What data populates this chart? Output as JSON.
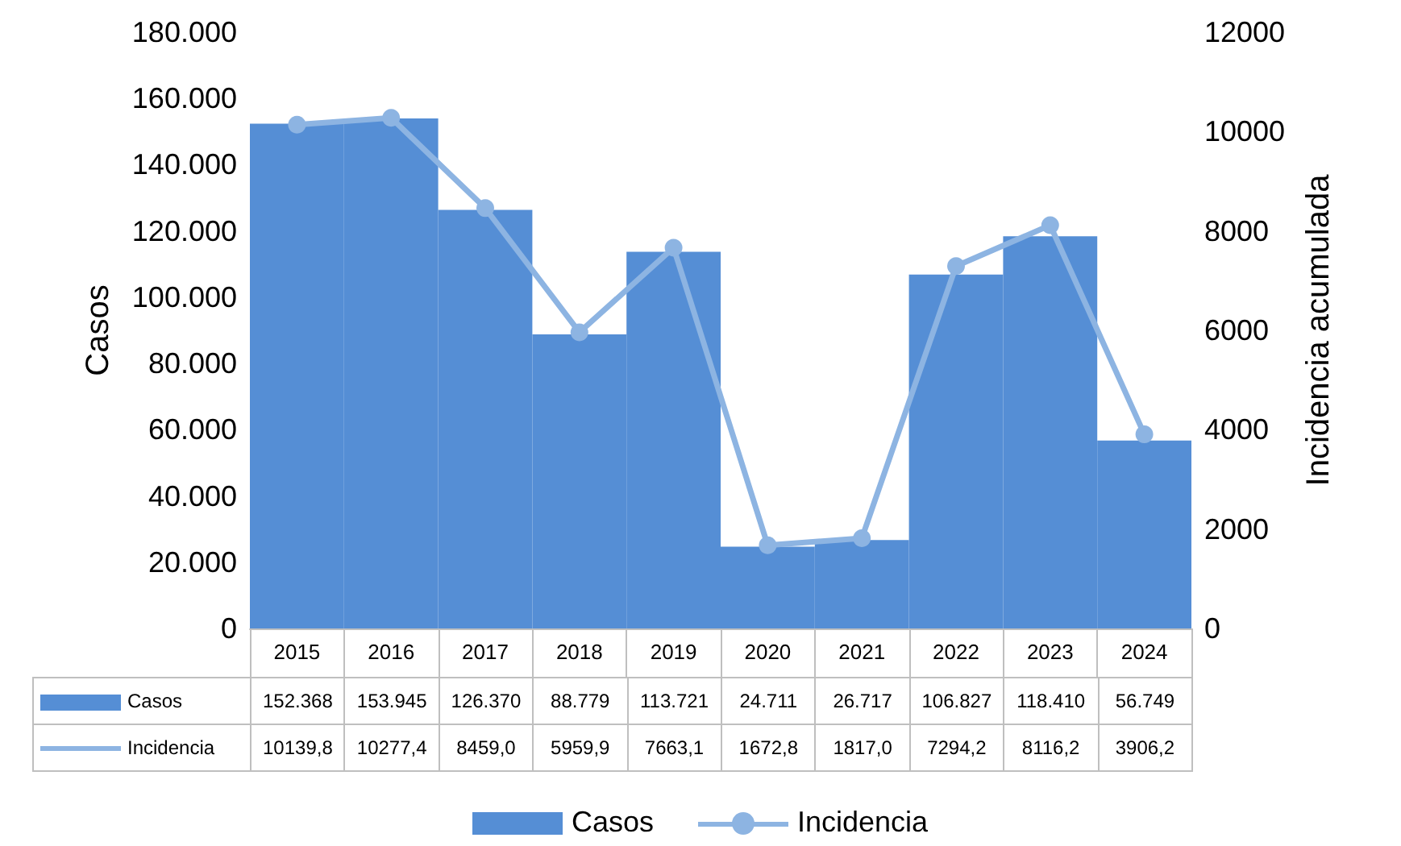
{
  "chart_data": {
    "type": "bar",
    "ylabel": "Casos",
    "y2label": "Incidencia acumulada",
    "categories": [
      "2015",
      "2016",
      "2017",
      "2018",
      "2019",
      "2020",
      "2021",
      "2022",
      "2023",
      "2024"
    ],
    "series": [
      {
        "name": "Casos",
        "color": "#558ed5",
        "values": [
          152368,
          153945,
          126370,
          88779,
          113721,
          24711,
          26717,
          106827,
          118410,
          56749
        ],
        "value_labels": [
          "152.368",
          "153.945",
          "126.370",
          "88.779",
          "113.721",
          "24.711",
          "26.717",
          "106.827",
          "118.410",
          "56.749"
        ]
      },
      {
        "name": "Incidencia",
        "type": "line",
        "axis": "y2",
        "color": "#8db4e2",
        "marker": "circle",
        "values": [
          10139.8,
          10277.4,
          8459.0,
          5959.9,
          7663.1,
          1672.8,
          1817.0,
          7294.2,
          8116.2,
          3906.2
        ],
        "value_labels": [
          "10139,8",
          "10277,4",
          "8459,0",
          "5959,9",
          "7663,1",
          "1672,8",
          "1817,0",
          "7294,2",
          "8116,2",
          "3906,2"
        ]
      }
    ],
    "ylim": [
      0,
      180000
    ],
    "yticks": [
      {
        "value": 0,
        "label": "0"
      },
      {
        "value": 20000,
        "label": "20.000"
      },
      {
        "value": 40000,
        "label": "40.000"
      },
      {
        "value": 60000,
        "label": "60.000"
      },
      {
        "value": 80000,
        "label": "80.000"
      },
      {
        "value": 100000,
        "label": "100.000"
      },
      {
        "value": 120000,
        "label": "120.000"
      },
      {
        "value": 140000,
        "label": "140.000"
      },
      {
        "value": 160000,
        "label": "160.000"
      },
      {
        "value": 180000,
        "label": "180.000"
      }
    ],
    "y2lim": [
      0,
      12000
    ],
    "y2ticks": [
      0,
      2000,
      4000,
      6000,
      8000,
      10000,
      12000
    ],
    "grid": false,
    "legend": "bottom"
  }
}
